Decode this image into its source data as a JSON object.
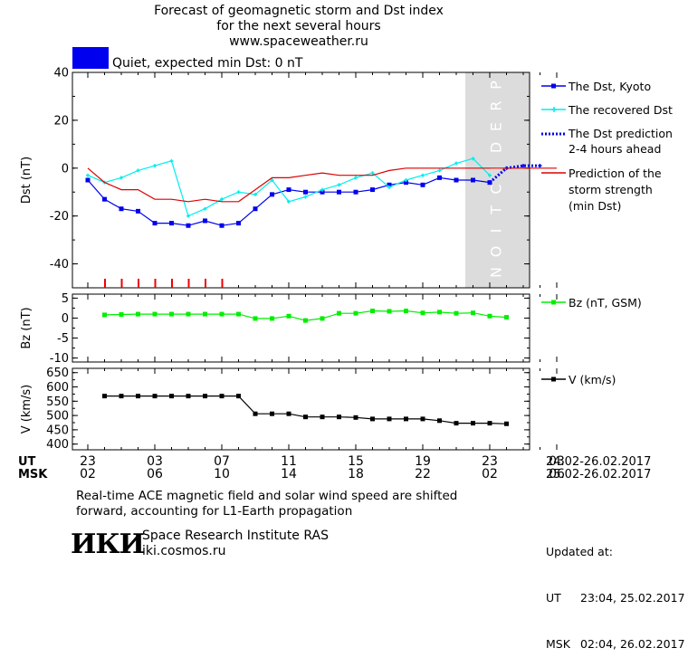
{
  "header": {
    "line1": "Forecast of geomagnetic storm and Dst index",
    "line2": "for the next several hours",
    "line3": "www.spaceweather.ru"
  },
  "status": {
    "color": "#0000ee",
    "text": "Quiet, expected min Dst: 0 nT"
  },
  "chart_data": [
    {
      "type": "line",
      "ylabel": "Dst (nT)",
      "ylim": [
        -50,
        40
      ],
      "yticks": [
        -40,
        -20,
        0,
        20,
        40
      ],
      "x": [
        0,
        1,
        2,
        3,
        4,
        5,
        6,
        7,
        8,
        9,
        10,
        11,
        12,
        13,
        14,
        15,
        16,
        17,
        18,
        19,
        20,
        21,
        22,
        23,
        24,
        25,
        26,
        27,
        28
      ],
      "prediction_region_label": "PREDICTION",
      "prediction_region_x": [
        24,
        28
      ],
      "series": [
        {
          "name": "The Dst, Kyoto",
          "color": "#0000ee",
          "marker": "square",
          "x": [
            0,
            1,
            2,
            3,
            4,
            5,
            6,
            7,
            8,
            9,
            10,
            11,
            12,
            13,
            14,
            15,
            16,
            17,
            18,
            19,
            20,
            21,
            22,
            23,
            24
          ],
          "values": [
            -5,
            -13,
            -17,
            -18,
            -23,
            -23,
            -24,
            -22,
            -24,
            -23,
            -17,
            -11,
            -9,
            -10,
            -10,
            -10,
            -10,
            -9,
            -7,
            -6,
            -7,
            -4,
            -5,
            -5,
            -6
          ]
        },
        {
          "name": "The recovered Dst",
          "color": "#00eeee",
          "marker": "cross",
          "x": [
            0,
            1,
            2,
            3,
            4,
            5,
            6,
            7,
            8,
            9,
            10,
            11,
            12,
            13,
            14,
            15,
            16,
            17,
            18,
            19,
            20,
            21,
            22,
            23,
            24
          ],
          "values": [
            -3,
            -6,
            -4,
            -1,
            1,
            3,
            -20,
            -17,
            -13,
            -10,
            -11,
            -5,
            -14,
            -12,
            -9,
            -7,
            -4,
            -2,
            -8,
            -5,
            -3,
            -1,
            2,
            4,
            -3
          ]
        },
        {
          "name": "The Dst prediction 2-4 hours ahead",
          "color": "#0000ee",
          "marker": "plus",
          "dotted": true,
          "x": [
            24,
            25,
            26,
            27
          ],
          "values": [
            -6,
            0,
            1,
            1
          ]
        },
        {
          "name": "Prediction of the storm strength (min Dst)",
          "color": "#dd0000",
          "marker": "none",
          "x": [
            0,
            1,
            2,
            3,
            4,
            5,
            6,
            7,
            8,
            9,
            10,
            11,
            12,
            13,
            14,
            15,
            16,
            17,
            18,
            19,
            20,
            21,
            22,
            23,
            24,
            25,
            26,
            27,
            28
          ],
          "values": [
            0,
            -6,
            -9,
            -9,
            -13,
            -13,
            -14,
            -13,
            -14,
            -14,
            -9,
            -4,
            -4,
            -3,
            -2,
            -3,
            -3,
            -3,
            -1,
            0,
            0,
            0,
            0,
            0,
            0,
            0,
            0,
            0,
            0
          ]
        }
      ],
      "storm_ticks_x": [
        2,
        3,
        4,
        5,
        6,
        7,
        8,
        9
      ]
    },
    {
      "type": "line",
      "ylabel": "Bz (nT)",
      "ylim": [
        -11,
        6
      ],
      "yticks": [
        -10,
        -5,
        0,
        5
      ],
      "series": [
        {
          "name": "Bz (nT, GSM)",
          "color": "#00ee00",
          "marker": "square",
          "x": [
            1,
            2,
            3,
            4,
            5,
            6,
            7,
            8,
            9,
            10,
            11,
            12,
            13,
            14,
            15,
            16,
            17,
            18,
            19,
            20,
            21,
            22,
            23,
            24,
            25
          ],
          "values": [
            0.8,
            0.9,
            1,
            1,
            1,
            1,
            1,
            1,
            1,
            -0.1,
            -0.1,
            0.5,
            -0.6,
            -0.1,
            1.2,
            1.2,
            1.8,
            1.7,
            1.8,
            1.3,
            1.5,
            1.2,
            1.3,
            0.5,
            0.2
          ]
        }
      ]
    },
    {
      "type": "line",
      "ylabel": "V (km/s)",
      "ylim": [
        380,
        665
      ],
      "yticks": [
        400,
        450,
        500,
        550,
        600,
        650
      ],
      "series": [
        {
          "name": "V (km/s)",
          "color": "#000000",
          "marker": "square",
          "x": [
            1,
            2,
            3,
            4,
            5,
            6,
            7,
            8,
            9,
            10,
            11,
            12,
            13,
            14,
            15,
            16,
            17,
            18,
            19,
            20,
            21,
            22,
            23,
            24,
            25
          ],
          "values": [
            568,
            568,
            568,
            568,
            568,
            568,
            568,
            568,
            568,
            506,
            506,
            506,
            495,
            495,
            495,
            493,
            488,
            488,
            488,
            488,
            482,
            473,
            473,
            473,
            471
          ]
        }
      ]
    }
  ],
  "axis": {
    "ut_label": "UT",
    "msk_label": "MSK",
    "ut_ticks": [
      "23",
      "03",
      "07",
      "11",
      "15",
      "19",
      "23",
      "03"
    ],
    "msk_ticks": [
      "02",
      "06",
      "10",
      "14",
      "18",
      "22",
      "02",
      "06"
    ],
    "ut_range": "24.02-26.02.2017",
    "msk_range": "25.02-26.02.2017"
  },
  "legend": {
    "dst_kyoto": "The Dst, Kyoto",
    "recovered": "The recovered Dst",
    "prediction_l1": "The Dst prediction",
    "prediction_l2": "2-4 hours ahead",
    "strength_l1": "Prediction of the",
    "strength_l2": "storm strength",
    "strength_l3": "(min Dst)",
    "bz": "Bz (nT, GSM)",
    "v": "V (km/s)"
  },
  "note": {
    "line1": "Real-time ACE magnetic field and solar wind speed are shifted",
    "line2": "forward, accounting for L1-Earth propagation"
  },
  "footer": {
    "logo": "ИКИ",
    "org_name": "Space Research Institute RAS",
    "org_site": "iki.cosmos.ru",
    "updated_label": "Updated at:",
    "ut_label": "UT",
    "ut_time": "23:04, 25.02.2017",
    "msk_label": "MSK",
    "msk_time": "02:04, 26.02.2017"
  }
}
